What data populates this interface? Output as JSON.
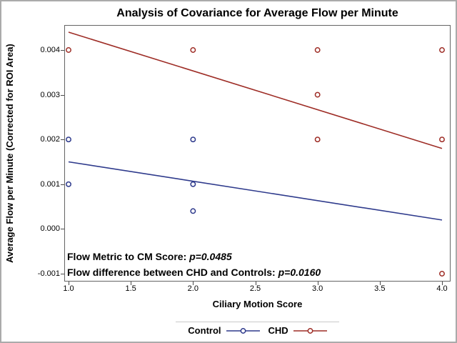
{
  "chart_data": {
    "type": "scatter",
    "title": "Analysis of Covariance for Average Flow per Minute",
    "xlabel": "Ciliary Motion Score",
    "ylabel": "Average Flow per Minute (Corrected for ROI Area)",
    "x_ticks": [
      1.0,
      1.5,
      2.0,
      2.5,
      3.0,
      3.5,
      4.0
    ],
    "x_tick_labels": [
      "1.0",
      "1.5",
      "2.0",
      "2.5",
      "3.0",
      "3.5",
      "4.0"
    ],
    "y_ticks": [
      -0.001,
      0.0,
      0.001,
      0.002,
      0.003,
      0.004
    ],
    "y_tick_labels": [
      "-0.001",
      "0.000",
      "0.001",
      "0.002",
      "0.003",
      "0.004"
    ],
    "xlim": [
      0.97,
      4.07
    ],
    "ylim": [
      -0.0012,
      0.0046
    ],
    "grid": false,
    "legend_position": "bottom",
    "frame_color": "#646464",
    "tick_color": "#4a4a4a",
    "series": [
      {
        "name": "Control",
        "color": "#2e3a8c",
        "marker": "open-circle",
        "points": [
          [
            1.0,
            0.002
          ],
          [
            1.0,
            0.001
          ],
          [
            2.0,
            0.002
          ],
          [
            2.0,
            0.001
          ],
          [
            2.0,
            0.0004
          ]
        ],
        "trend_line": {
          "x": [
            1.0,
            4.0
          ],
          "y": [
            0.0015,
            0.0002
          ]
        }
      },
      {
        "name": "CHD",
        "color": "#9e2d26",
        "marker": "open-circle",
        "points": [
          [
            1.0,
            0.004
          ],
          [
            2.0,
            0.004
          ],
          [
            3.0,
            0.004
          ],
          [
            3.0,
            0.003
          ],
          [
            3.0,
            0.002
          ],
          [
            4.0,
            0.004
          ],
          [
            4.0,
            0.002
          ],
          [
            4.0,
            -0.001
          ]
        ],
        "trend_line": {
          "x": [
            1.0,
            4.0
          ],
          "y": [
            0.0044,
            0.0018
          ]
        }
      }
    ],
    "annotations": [
      {
        "prefix": "Flow Metric to CM Score: ",
        "p_value": "p=0.0485"
      },
      {
        "prefix": "Flow difference between CHD and Controls: ",
        "p_value": "p=0.0160"
      }
    ]
  }
}
